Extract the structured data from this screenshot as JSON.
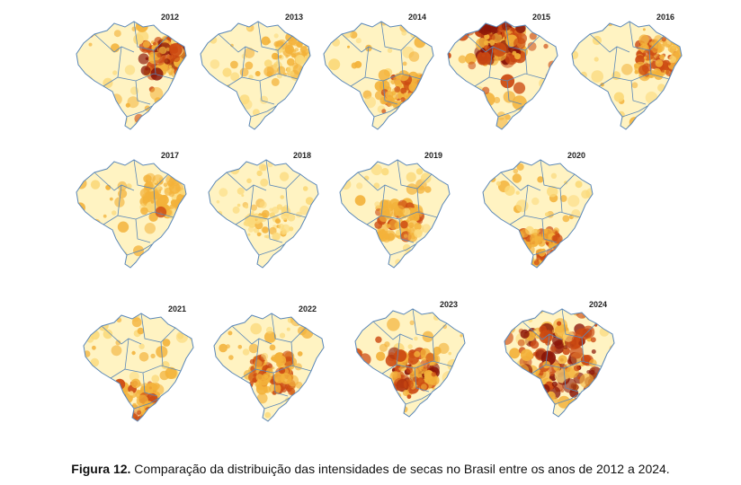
{
  "figure": {
    "caption_label": "Figura 12.",
    "caption_text": " Comparação da distribuição das intensidades de secas no Brasil entre os anos de 2012 a 2024."
  },
  "maps": [
    {
      "year": "2012",
      "intensity": 0.75,
      "focus": "northeast"
    },
    {
      "year": "2013",
      "intensity": 0.35,
      "focus": "northeast"
    },
    {
      "year": "2014",
      "intensity": 0.55,
      "focus": "southeast"
    },
    {
      "year": "2015",
      "intensity": 0.95,
      "focus": "north"
    },
    {
      "year": "2016",
      "intensity": 0.6,
      "focus": "northeast"
    },
    {
      "year": "2017",
      "intensity": 0.45,
      "focus": "northeast"
    },
    {
      "year": "2018",
      "intensity": 0.2,
      "focus": "center"
    },
    {
      "year": "2019",
      "intensity": 0.5,
      "focus": "center"
    },
    {
      "year": "2020",
      "intensity": 0.65,
      "focus": "south"
    },
    {
      "year": "2021",
      "intensity": 0.55,
      "focus": "south"
    },
    {
      "year": "2022",
      "intensity": 0.6,
      "focus": "center"
    },
    {
      "year": "2023",
      "intensity": 0.75,
      "focus": "center"
    },
    {
      "year": "2024",
      "intensity": 0.95,
      "focus": "widespread"
    }
  ],
  "colors": {
    "low": "#fff3c2",
    "mid": "#f3b23a",
    "high": "#cc4a12",
    "extreme": "#8a1508",
    "border": "#5a87b8"
  }
}
